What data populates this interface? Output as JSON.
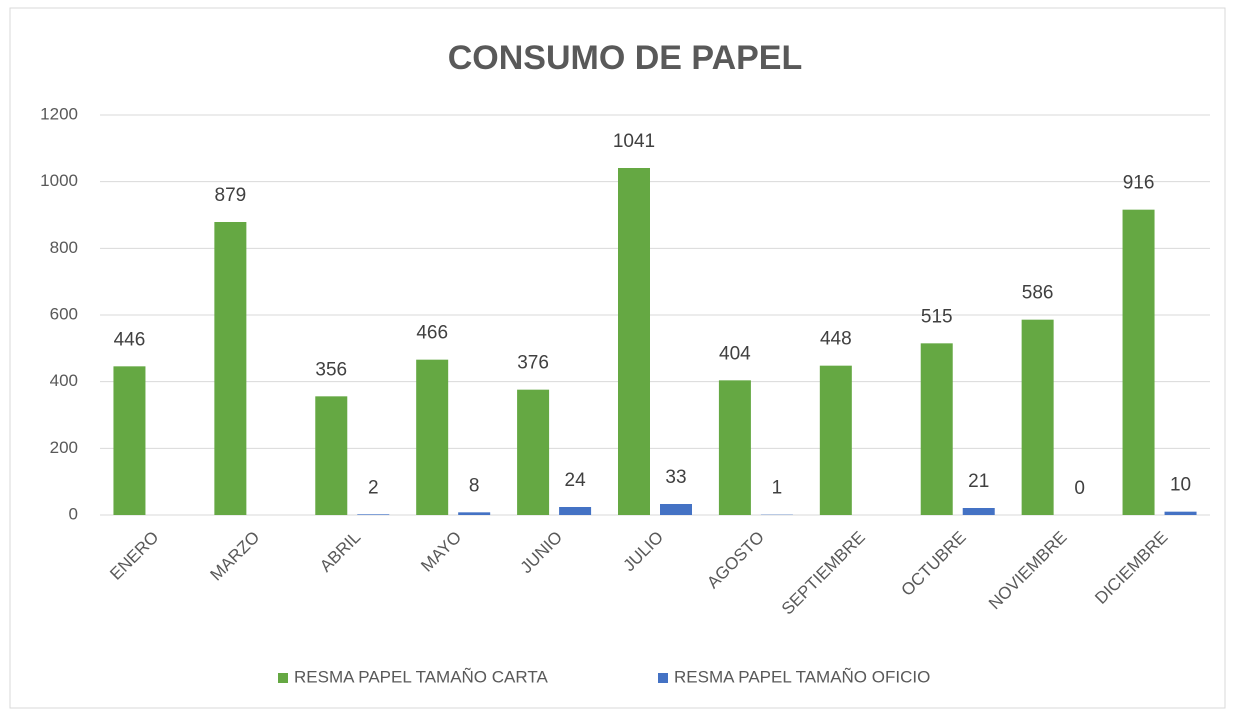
{
  "chart_data": {
    "type": "bar",
    "title": "CONSUMO DE PAPEL",
    "categories": [
      "ENERO",
      "MARZO",
      "ABRIL",
      "MAYO",
      "JUNIO",
      "JULIO",
      "AGOSTO",
      "SEPTIEMBRE",
      "OCTUBRE",
      "NOVIEMBRE",
      "DICIEMBRE"
    ],
    "series": [
      {
        "name": "RESMA PAPEL TAMAÑO CARTA",
        "color": "#65a843",
        "values": [
          446,
          879,
          356,
          466,
          376,
          1041,
          404,
          448,
          515,
          586,
          916
        ]
      },
      {
        "name": "RESMA PAPEL TAMAÑO OFICIO",
        "color": "#4472c4",
        "values": [
          null,
          null,
          2,
          8,
          24,
          33,
          1,
          null,
          21,
          0,
          10
        ]
      }
    ],
    "ylim": [
      0,
      1200
    ],
    "yticks": [
      0,
      200,
      400,
      600,
      800,
      1000,
      1200
    ],
    "grid": true,
    "legend": "bottom"
  }
}
